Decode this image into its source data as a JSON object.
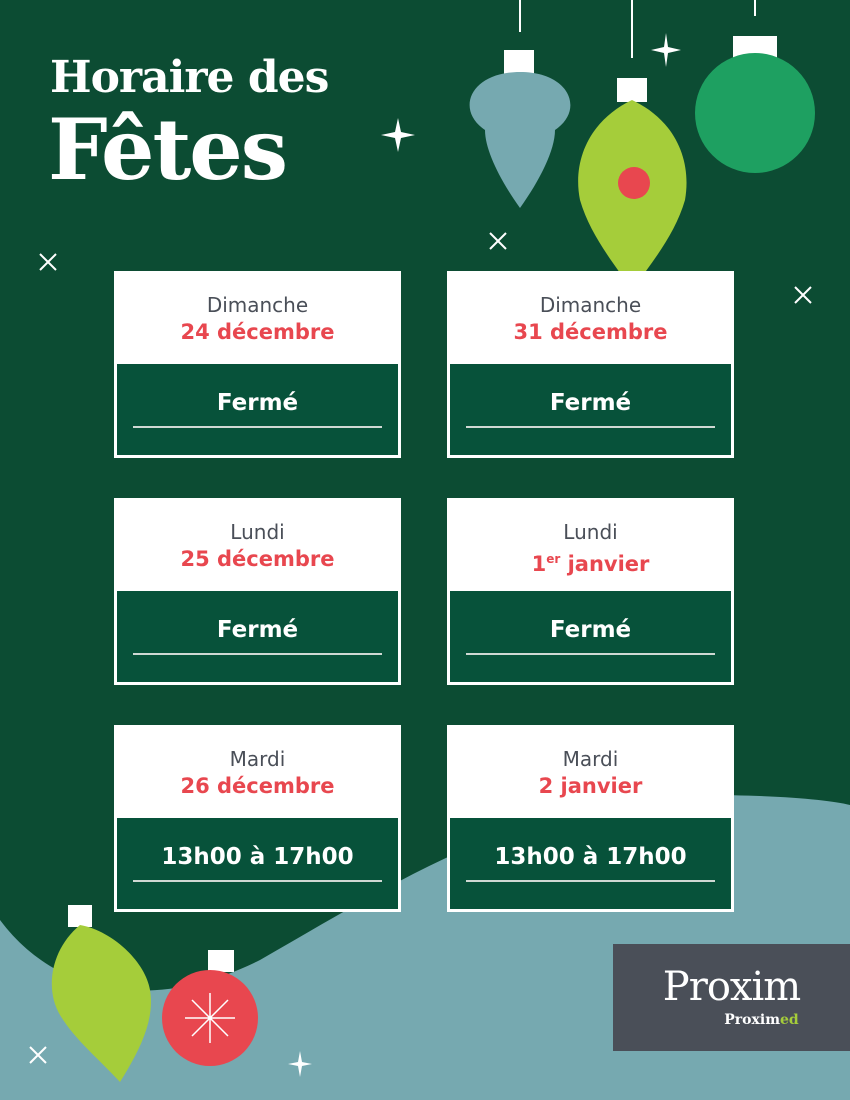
{
  "header": {
    "line1": "Horaire des",
    "line2": "Fêtes"
  },
  "schedule": [
    {
      "day": "Dimanche",
      "date": "24 décembre",
      "sup": "",
      "hours": "Fermé"
    },
    {
      "day": "Dimanche",
      "date": "31 décembre",
      "sup": "",
      "hours": "Fermé"
    },
    {
      "day": "Lundi",
      "date": "25 décembre",
      "sup": "",
      "hours": "Fermé"
    },
    {
      "day": "Lundi",
      "date_prefix": "1",
      "sup": "er",
      "date": " janvier",
      "hours": "Fermé"
    },
    {
      "day": "Mardi",
      "date": "26 décembre",
      "sup": "",
      "hours": "13h00 à 17h00"
    },
    {
      "day": "Mardi",
      "date": "2 janvier",
      "sup": "",
      "hours": "13h00 à 17h00"
    }
  ],
  "logo": {
    "main": "Proxim",
    "sub_a": "Proxim",
    "sub_b": "ed"
  },
  "colors": {
    "background": "#0c4c33",
    "accent_red": "#e8474f",
    "teal": "#76a9b0",
    "lime": "#a5cd3a",
    "logo_bg": "#4a4f58"
  }
}
